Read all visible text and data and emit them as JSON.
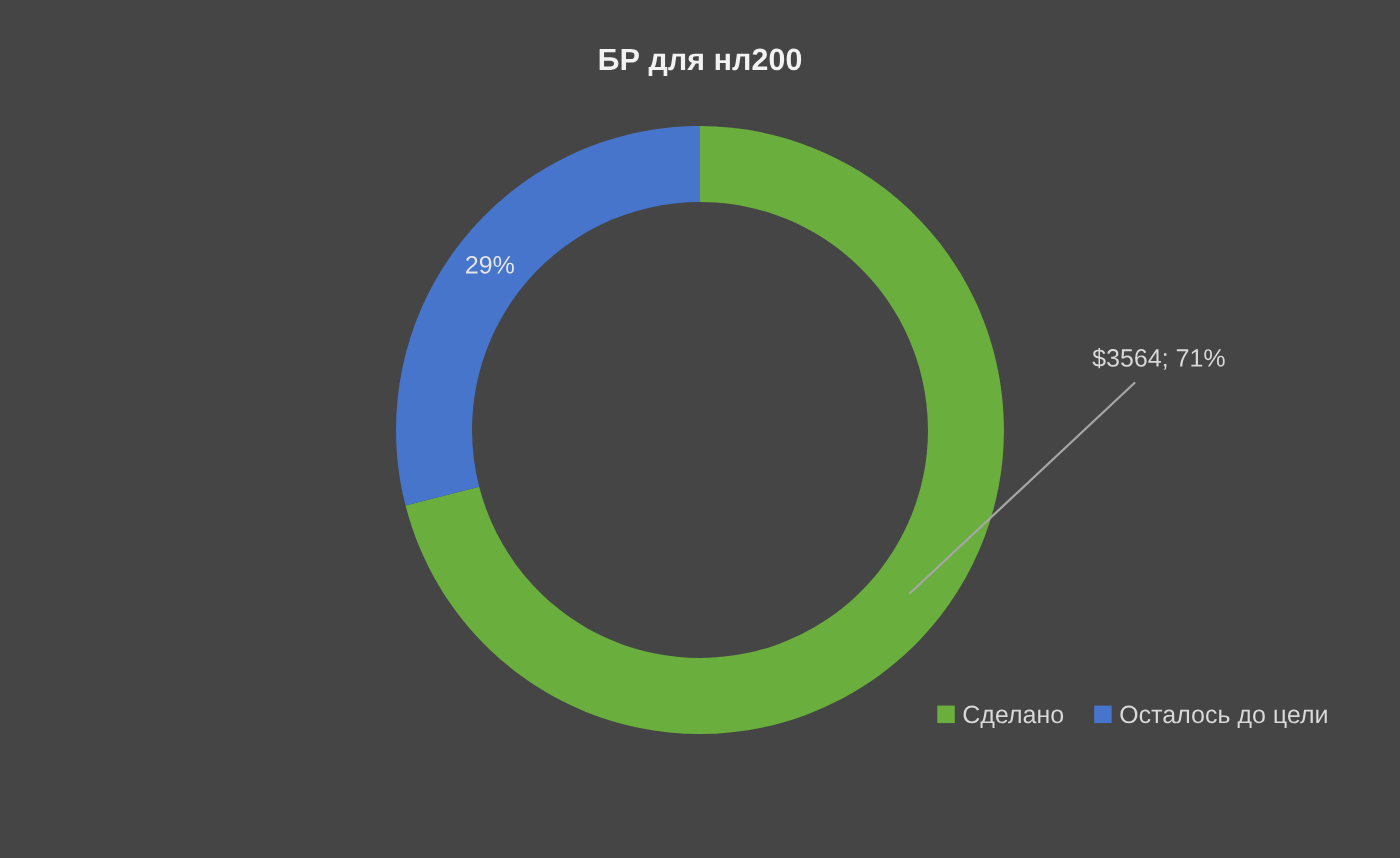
{
  "chart_data": {
    "type": "donut",
    "title": "БР для нл200",
    "categories": [
      "Сделано",
      "Осталось до цели"
    ],
    "values": [
      71,
      29
    ],
    "colors": [
      "#6aae3e",
      "#4775cb"
    ],
    "value_labels": [
      "$3564; 71%",
      "29%"
    ],
    "legend": "bottom right"
  }
}
